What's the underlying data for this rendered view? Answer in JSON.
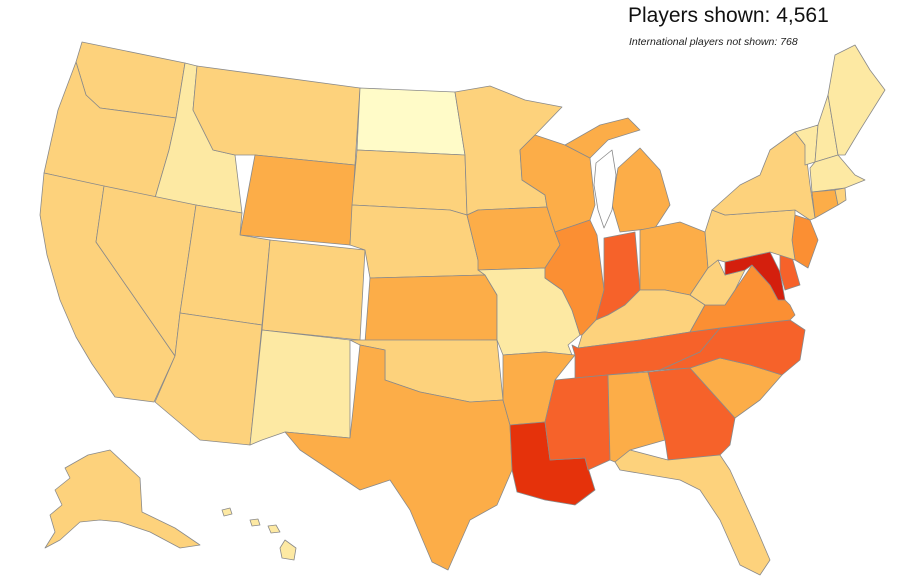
{
  "header": {
    "title": "Players shown: 4,561",
    "subtitle": "International players not shown: 768"
  },
  "palette": {
    "lightest": "#fffbc8",
    "light": "#fde9a3",
    "pale": "#fdd98a",
    "mid": "#fdd27c",
    "orange_light": "#fcad48",
    "orange": "#fb8f33",
    "orange_dark": "#f6622a",
    "red": "#e5320b",
    "dark_red": "#d41f0d"
  },
  "states": {
    "WA": "mid",
    "OR": "mid",
    "CA": "mid",
    "ID": "light",
    "NV": "mid",
    "MT": "mid",
    "WY": "orange_light",
    "UT": "mid",
    "AZ": "mid",
    "CO": "mid",
    "NM": "light",
    "ND": "lightest",
    "SD": "mid",
    "NE": "mid",
    "KS": "orange_light",
    "OK": "mid",
    "TX": "orange_light",
    "MN": "mid",
    "IA": "orange_light",
    "MO": "light",
    "AR": "orange_light",
    "LA": "red",
    "WI": "orange_light",
    "IL": "orange",
    "MI": "orange_light",
    "IN": "orange_dark",
    "OH": "orange_light",
    "KY": "mid",
    "TN": "orange_dark",
    "MS": "orange_dark",
    "AL": "orange_light",
    "GA": "orange_dark",
    "FL": "mid",
    "SC": "orange_light",
    "NC": "orange_dark",
    "VA": "orange",
    "WV": "mid",
    "MD": "dark_red",
    "DE": "orange_dark",
    "NJ": "orange",
    "PA": "mid",
    "NY": "mid",
    "VT": "light",
    "NH": "light",
    "ME": "light",
    "MA": "light",
    "CT": "orange_light",
    "RI": "mid",
    "AK": "mid",
    "HI": "light"
  }
}
